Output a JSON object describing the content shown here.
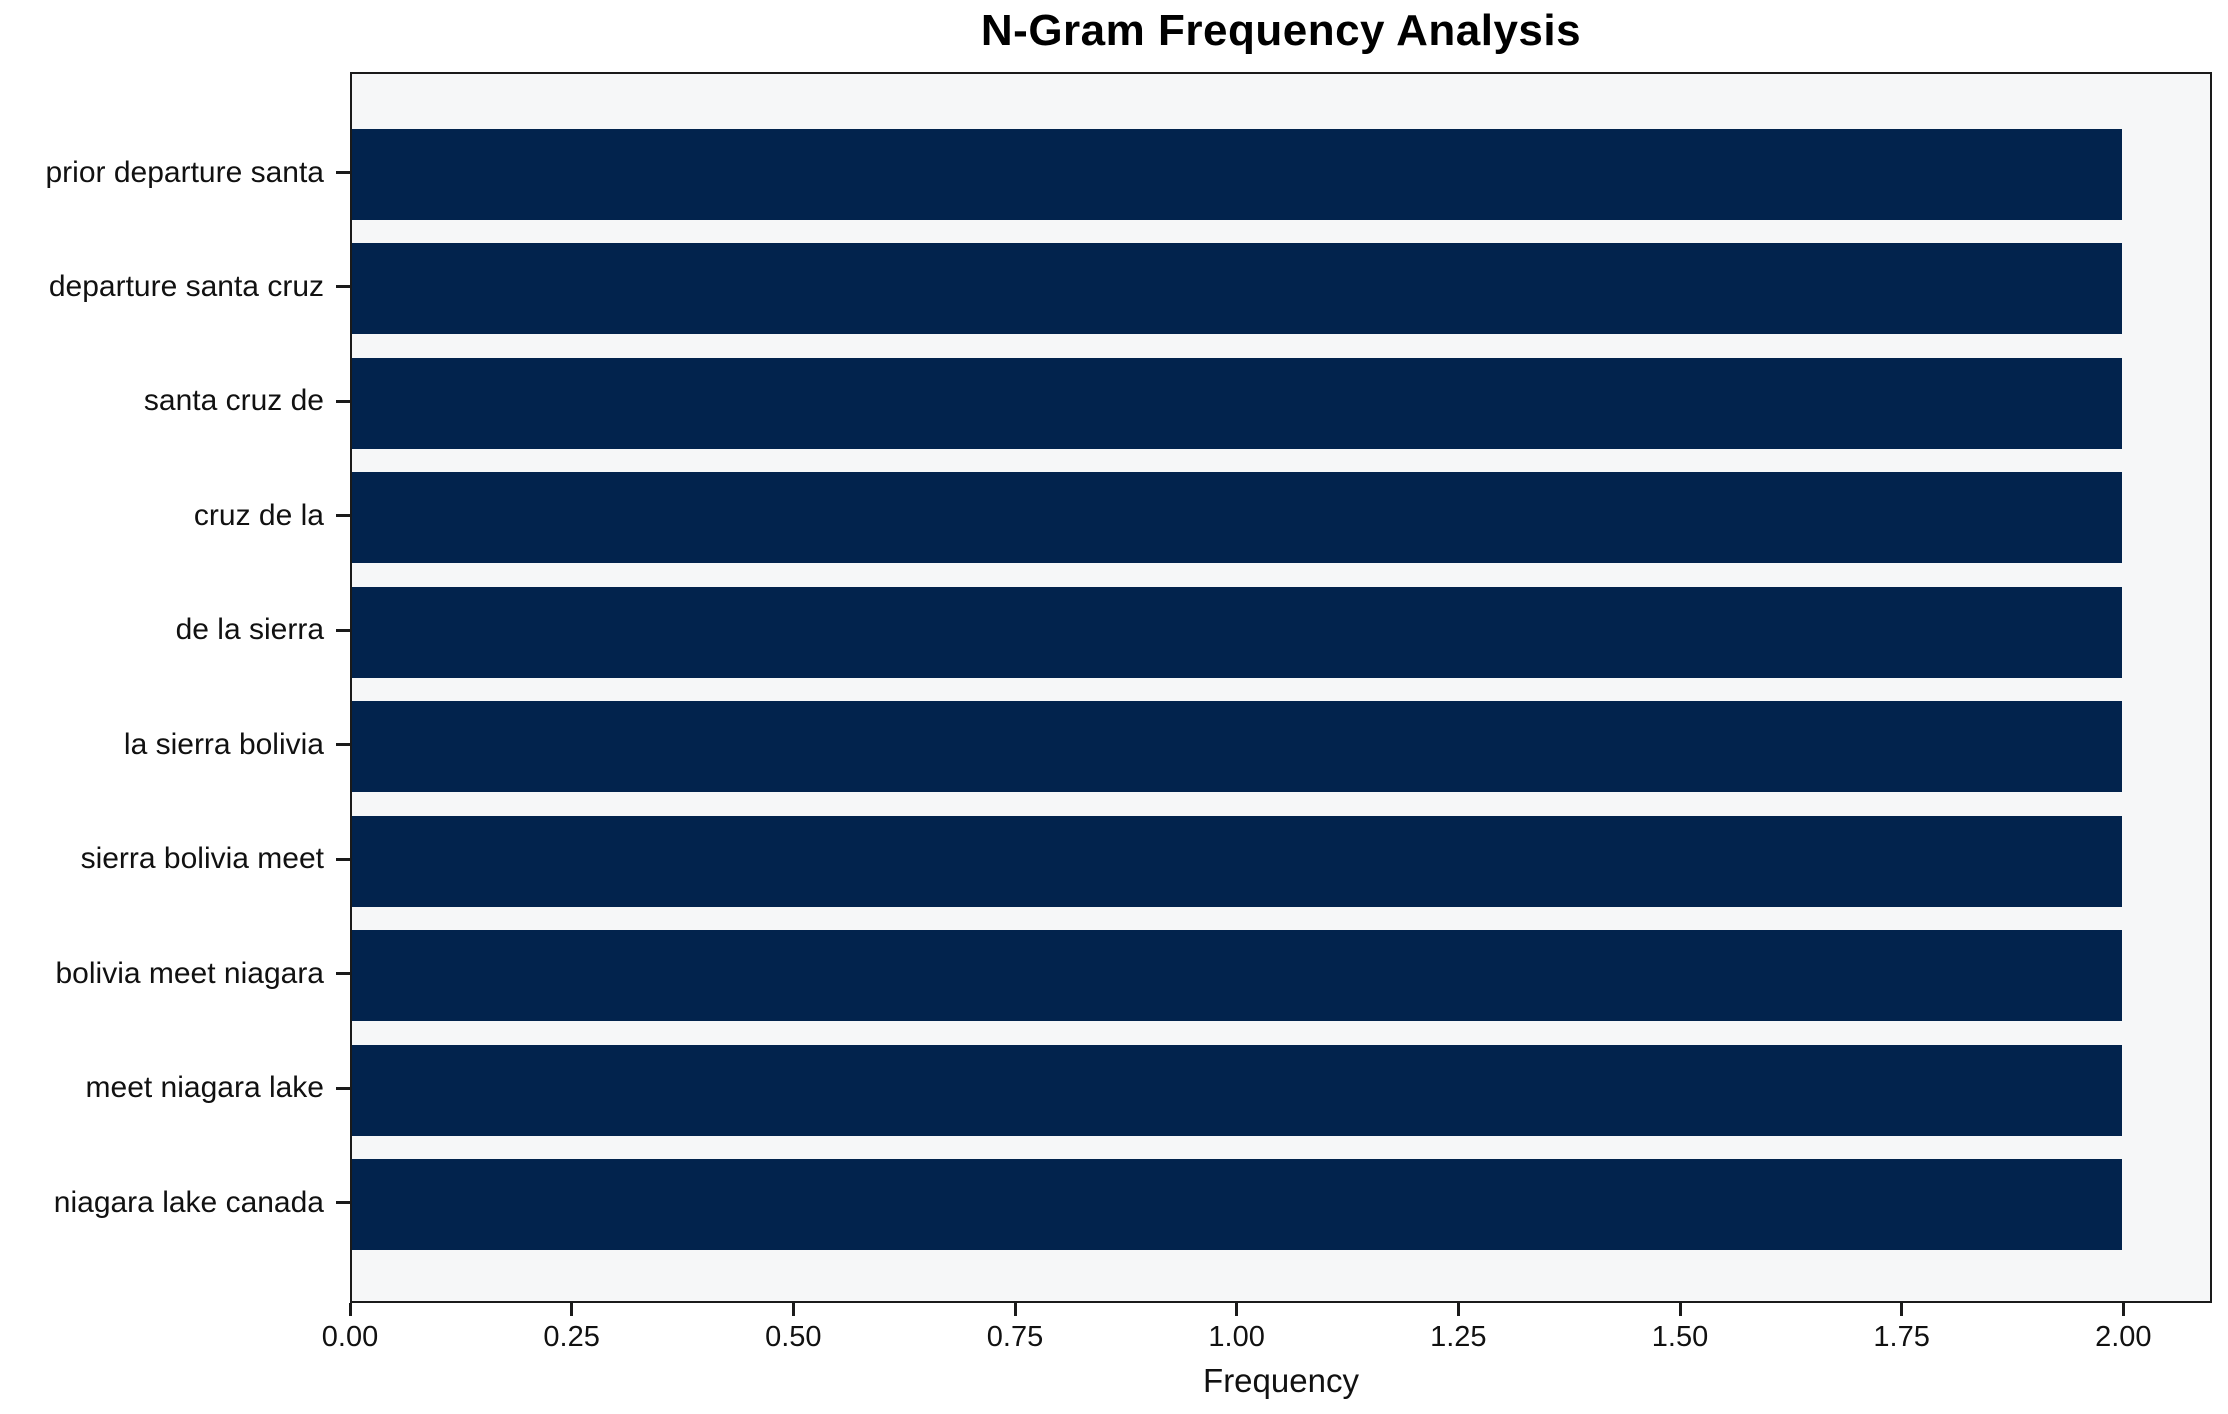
{
  "chart_data": {
    "type": "bar",
    "orientation": "horizontal",
    "title": "N-Gram Frequency Analysis",
    "xlabel": "Frequency",
    "ylabel": "",
    "categories": [
      "prior departure santa",
      "departure santa cruz",
      "santa cruz de",
      "cruz de la",
      "de la sierra",
      "la sierra bolivia",
      "sierra bolivia meet",
      "bolivia meet niagara",
      "meet niagara lake",
      "niagara lake canada"
    ],
    "values": [
      2,
      2,
      2,
      2,
      2,
      2,
      2,
      2,
      2,
      2
    ],
    "xlim": [
      0,
      2.1
    ],
    "xticks": [
      0.0,
      0.25,
      0.5,
      0.75,
      1.0,
      1.25,
      1.5,
      1.75,
      2.0
    ],
    "xtick_labels": [
      "0.00",
      "0.25",
      "0.50",
      "0.75",
      "1.00",
      "1.25",
      "1.50",
      "1.75",
      "2.00"
    ],
    "grid": false,
    "legend": "none",
    "bar_color": "#02234d",
    "plot_background": "#f6f7f8",
    "figure_background": "#ffffff",
    "spine_color": "#1a1a1a"
  }
}
